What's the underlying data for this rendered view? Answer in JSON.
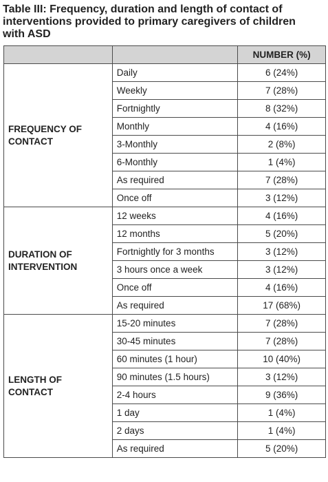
{
  "caption": {
    "line1": "Table III: Frequency, duration and length of contact of",
    "line2": "interventions provided to primary caregivers of children",
    "line3": "with ASD"
  },
  "table": {
    "header": {
      "group": "",
      "label": "",
      "value": "NUMBER (%)"
    },
    "groups": [
      {
        "title_line1": "FREQUENCY OF",
        "title_line2": "CONTACT",
        "rows": [
          {
            "label": "Daily",
            "value": "6 (24%)"
          },
          {
            "label": "Weekly",
            "value": "7 (28%)"
          },
          {
            "label": "Fortnightly",
            "value": "8 (32%)"
          },
          {
            "label": "Monthly",
            "value": "4 (16%)"
          },
          {
            "label": "3-Monthly",
            "value": "2 (8%)"
          },
          {
            "label": "6-Monthly",
            "value": "1 (4%)"
          },
          {
            "label": "As required",
            "value": "7 (28%)"
          },
          {
            "label": "Once off",
            "value": "3 (12%)"
          }
        ]
      },
      {
        "title_line1": "DURATION OF",
        "title_line2": "INTERVENTION",
        "rows": [
          {
            "label": "12 weeks",
            "value": "4 (16%)"
          },
          {
            "label": "12 months",
            "value": "5 (20%)"
          },
          {
            "label": "Fortnightly for 3 months",
            "value": "3 (12%)"
          },
          {
            "label": "3 hours once a week",
            "value": "3 (12%)"
          },
          {
            "label": "Once off",
            "value": "4 (16%)"
          },
          {
            "label": "As required",
            "value": "17 (68%)"
          }
        ]
      },
      {
        "title_line1": "LENGTH OF",
        "title_line2": "CONTACT",
        "rows": [
          {
            "label": "15-20 minutes",
            "value": "7 (28%)"
          },
          {
            "label": "30-45 minutes",
            "value": "7 (28%)"
          },
          {
            "label": "60 minutes (1 hour)",
            "value": "10 (40%)"
          },
          {
            "label": "90 minutes (1.5 hours)",
            "value": "3 (12%)"
          },
          {
            "label": "2-4 hours",
            "value": "9 (36%)"
          },
          {
            "label": "1 day",
            "value": "1 (4%)"
          },
          {
            "label": "2 days",
            "value": "1 (4%)"
          },
          {
            "label": "As required",
            "value": "5 (20%)"
          }
        ]
      }
    ]
  }
}
